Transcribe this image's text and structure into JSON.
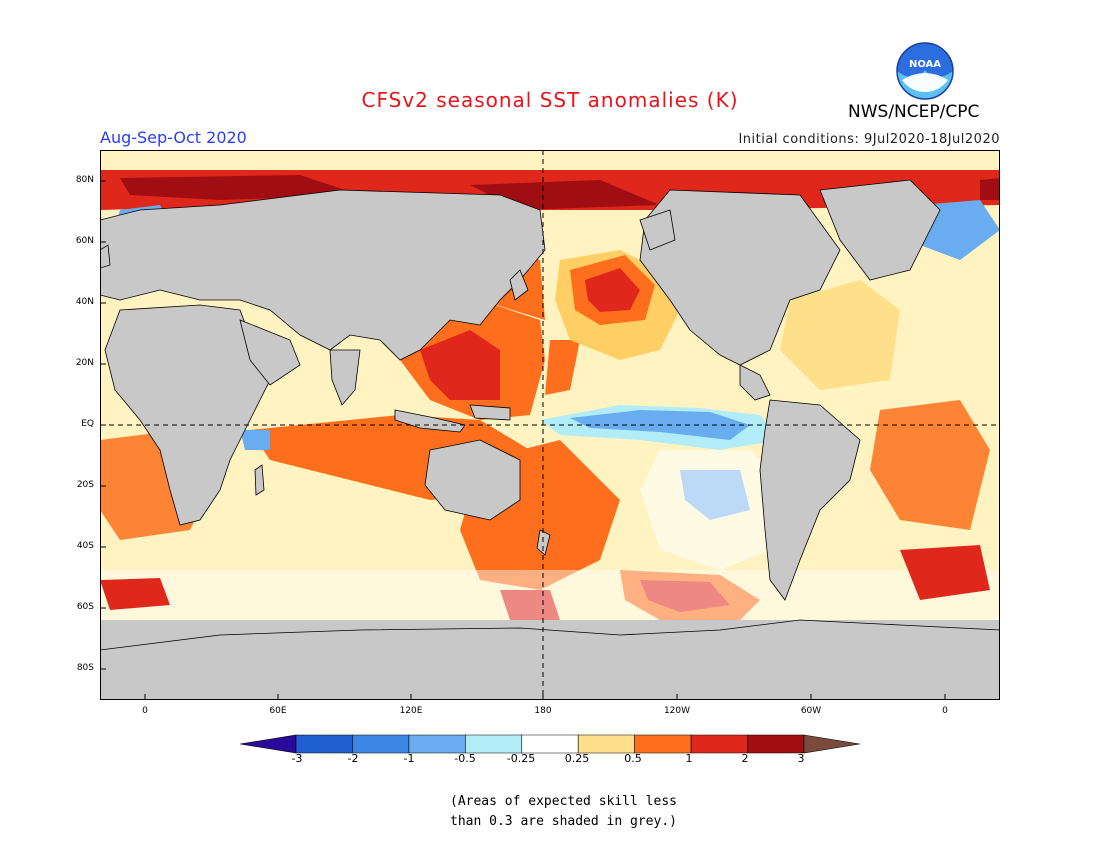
{
  "header": {
    "title": "CFSv2 seasonal SST anomalies (K)",
    "period": "Aug-Sep-Oct 2020",
    "initial_conditions": "Initial conditions: 9Jul2020-18Jul2020",
    "agency": "NWS/NCEP/CPC",
    "logo_text": "NOAA"
  },
  "map": {
    "lat_labels": [
      "80N",
      "60N",
      "40N",
      "20N",
      "EQ",
      "20S",
      "40S",
      "60S",
      "80S"
    ],
    "lon_labels": [
      "0",
      "60E",
      "120E",
      "180",
      "120W",
      "60W",
      "0"
    ],
    "colors": {
      "land": "#c8c8c8",
      "skill_grey": "#c8c8c8"
    }
  },
  "colorbar": {
    "labels": [
      "-3",
      "-2",
      "-1",
      "-0.5",
      "-0.25",
      "0.25",
      "0.5",
      "1",
      "2",
      "3"
    ],
    "colors": [
      "#2a0a9a",
      "#1f5fd0",
      "#3d86e6",
      "#6aacf0",
      "#b2ecf6",
      "#ffffff",
      "#ffe08a",
      "#fd6f1c",
      "#e0271c",
      "#a00d12",
      "#7a4b3a"
    ]
  },
  "note": {
    "line1": "(Areas of expected skill less",
    "line2": "than 0.3 are shaded in grey.)"
  }
}
